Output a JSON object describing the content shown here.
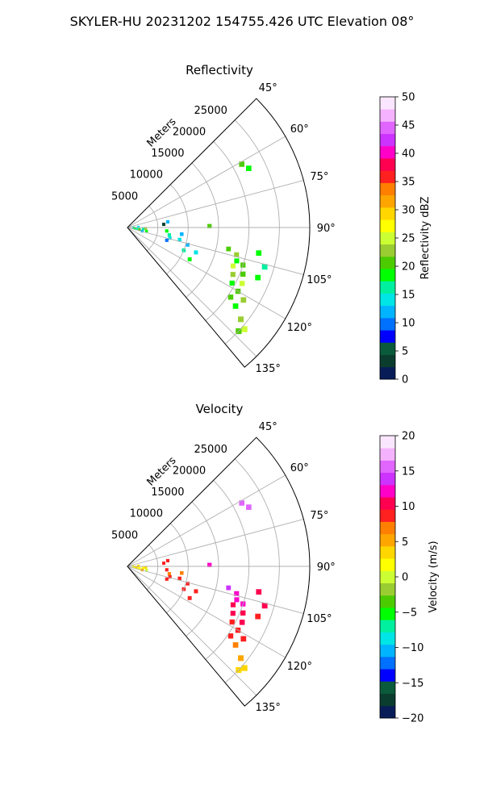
{
  "figure": {
    "suptitle": "SKYLER-HU  20231202  154755.426 UTC Elevation 08°",
    "range_unit_label": "Meters"
  },
  "chart_data": [
    {
      "type": "polar-ppi",
      "title": "Reflectivity",
      "colorbar_label": "Reflectivity dBZ",
      "colorbar_range": [
        0,
        50
      ],
      "colorbar_ticks": [
        "0",
        "5",
        "10",
        "15",
        "20",
        "25",
        "30",
        "35",
        "40",
        "45",
        "50"
      ],
      "colormap": [
        "#081d58",
        "#0b3d2e",
        "#0a5a3c",
        "#0000ff",
        "#0070ff",
        "#00b4ff",
        "#00e5e5",
        "#00f0a0",
        "#00ff00",
        "#4ccc00",
        "#9acd32",
        "#ccff33",
        "#ffff00",
        "#ffd700",
        "#ffa500",
        "#ff7f00",
        "#ff2020",
        "#ff0050",
        "#ff00c8",
        "#cc33ff",
        "#e066ff",
        "#f5b3ff",
        "#fbe6ff"
      ],
      "angular_ticks": [
        "45°",
        "60°",
        "75°",
        "90°",
        "105°",
        "120°",
        "135°"
      ],
      "radial_ticks": [
        "5000",
        "10000",
        "15000",
        "20000",
        "25000"
      ],
      "range_max_m": 30000,
      "azimuth_range_deg": [
        45,
        140
      ],
      "echo_cells": [
        {
          "az": 92,
          "r": 1000,
          "v": 14
        },
        {
          "az": 95,
          "r": 1200,
          "v": 18
        },
        {
          "az": 98,
          "r": 1500,
          "v": 16
        },
        {
          "az": 100,
          "r": 2000,
          "v": 20
        },
        {
          "az": 88,
          "r": 1800,
          "v": 15
        },
        {
          "az": 96,
          "r": 2600,
          "v": 17
        },
        {
          "az": 101,
          "r": 3200,
          "v": 19
        },
        {
          "az": 93,
          "r": 3000,
          "v": 22
        },
        {
          "az": 104,
          "r": 2500,
          "v": 13
        },
        {
          "az": 85,
          "r": 6000,
          "v": 3
        },
        {
          "az": 82,
          "r": 6700,
          "v": 12
        },
        {
          "az": 95,
          "r": 6500,
          "v": 18
        },
        {
          "az": 100,
          "r": 7000,
          "v": 16
        },
        {
          "az": 104,
          "r": 7200,
          "v": 14
        },
        {
          "az": 108,
          "r": 6800,
          "v": 10
        },
        {
          "az": 97,
          "r": 9000,
          "v": 12
        },
        {
          "az": 103,
          "r": 8800,
          "v": 15
        },
        {
          "az": 106,
          "r": 10300,
          "v": 13
        },
        {
          "az": 112,
          "r": 10000,
          "v": 17
        },
        {
          "az": 110,
          "r": 12000,
          "v": 15
        },
        {
          "az": 117,
          "r": 11500,
          "v": 18
        },
        {
          "az": 89,
          "r": 13500,
          "v": 20
        },
        {
          "az": 102,
          "r": 17000,
          "v": 20
        },
        {
          "az": 104,
          "r": 18500,
          "v": 22
        },
        {
          "az": 107,
          "r": 18800,
          "v": 19
        },
        {
          "az": 108,
          "r": 20000,
          "v": 21
        },
        {
          "az": 110,
          "r": 18500,
          "v": 24
        },
        {
          "az": 112,
          "r": 20500,
          "v": 20
        },
        {
          "az": 114,
          "r": 19000,
          "v": 22
        },
        {
          "az": 116,
          "r": 21000,
          "v": 25
        },
        {
          "az": 118,
          "r": 19500,
          "v": 18
        },
        {
          "az": 120,
          "r": 21000,
          "v": 21
        },
        {
          "az": 122,
          "r": 22500,
          "v": 23
        },
        {
          "az": 124,
          "r": 20500,
          "v": 20
        },
        {
          "az": 126,
          "r": 22000,
          "v": 19
        },
        {
          "az": 129,
          "r": 24000,
          "v": 22
        },
        {
          "az": 131,
          "r": 25500,
          "v": 24
        },
        {
          "az": 133,
          "r": 25000,
          "v": 21
        },
        {
          "az": 101,
          "r": 22000,
          "v": 18
        },
        {
          "az": 106,
          "r": 23500,
          "v": 16
        },
        {
          "az": 111,
          "r": 23000,
          "v": 19
        },
        {
          "az": 61,
          "r": 21500,
          "v": 20
        },
        {
          "az": 64,
          "r": 22200,
          "v": 18
        }
      ]
    },
    {
      "type": "polar-ppi",
      "title": "Velocity",
      "colorbar_label": "Velocity (m/s)",
      "colorbar_range": [
        -20,
        20
      ],
      "colorbar_ticks": [
        "−20",
        "−15",
        "−10",
        "−5",
        "0",
        "5",
        "10",
        "15",
        "20"
      ],
      "colormap": [
        "#081d58",
        "#0b3d2e",
        "#0a5a3c",
        "#0000ff",
        "#0070ff",
        "#00b4ff",
        "#00e5e5",
        "#00f0a0",
        "#00ff00",
        "#4ccc00",
        "#9acd32",
        "#ccff33",
        "#ffff00",
        "#ffd700",
        "#ffa500",
        "#ff7f00",
        "#ff2020",
        "#ff0050",
        "#ff00c8",
        "#cc33ff",
        "#e066ff",
        "#f5b3ff",
        "#fbe6ff"
      ],
      "angular_ticks": [
        "45°",
        "60°",
        "75°",
        "90°",
        "105°",
        "120°",
        "135°"
      ],
      "radial_ticks": [
        "5000",
        "10000",
        "15000",
        "20000",
        "25000"
      ],
      "range_max_m": 30000,
      "azimuth_range_deg": [
        45,
        140
      ],
      "echo_cells": [
        {
          "az": 92,
          "r": 1000,
          "v": 2
        },
        {
          "az": 95,
          "r": 1200,
          "v": 1
        },
        {
          "az": 98,
          "r": 1500,
          "v": 3
        },
        {
          "az": 100,
          "r": 2000,
          "v": 1
        },
        {
          "az": 88,
          "r": 1800,
          "v": 4
        },
        {
          "az": 96,
          "r": 2600,
          "v": 2
        },
        {
          "az": 101,
          "r": 3200,
          "v": 0
        },
        {
          "az": 93,
          "r": 3000,
          "v": 3
        },
        {
          "az": 104,
          "r": 2500,
          "v": 5
        },
        {
          "az": 85,
          "r": 6000,
          "v": 9
        },
        {
          "az": 82,
          "r": 6700,
          "v": 8
        },
        {
          "az": 95,
          "r": 6500,
          "v": 8
        },
        {
          "az": 100,
          "r": 7000,
          "v": 7
        },
        {
          "az": 104,
          "r": 7200,
          "v": 8
        },
        {
          "az": 108,
          "r": 6800,
          "v": 9
        },
        {
          "az": 97,
          "r": 9000,
          "v": 7
        },
        {
          "az": 103,
          "r": 8800,
          "v": 8
        },
        {
          "az": 106,
          "r": 10300,
          "v": 9
        },
        {
          "az": 112,
          "r": 10000,
          "v": 8
        },
        {
          "az": 110,
          "r": 12000,
          "v": 9
        },
        {
          "az": 117,
          "r": 11500,
          "v": 8
        },
        {
          "az": 89,
          "r": 13500,
          "v": 13
        },
        {
          "az": 102,
          "r": 17000,
          "v": 14
        },
        {
          "az": 104,
          "r": 18500,
          "v": 13
        },
        {
          "az": 107,
          "r": 18800,
          "v": 12
        },
        {
          "az": 108,
          "r": 20000,
          "v": 12
        },
        {
          "az": 110,
          "r": 18500,
          "v": 11
        },
        {
          "az": 112,
          "r": 20500,
          "v": 11
        },
        {
          "az": 114,
          "r": 19000,
          "v": 10
        },
        {
          "az": 116,
          "r": 21000,
          "v": 10
        },
        {
          "az": 118,
          "r": 19500,
          "v": 9
        },
        {
          "az": 120,
          "r": 21000,
          "v": 9
        },
        {
          "az": 122,
          "r": 22500,
          "v": 8
        },
        {
          "az": 124,
          "r": 20500,
          "v": 8
        },
        {
          "az": 126,
          "r": 22000,
          "v": 7
        },
        {
          "az": 129,
          "r": 24000,
          "v": 5
        },
        {
          "az": 131,
          "r": 25500,
          "v": 4
        },
        {
          "az": 133,
          "r": 25000,
          "v": 4
        },
        {
          "az": 101,
          "r": 22000,
          "v": 10
        },
        {
          "az": 106,
          "r": 23500,
          "v": 11
        },
        {
          "az": 111,
          "r": 23000,
          "v": 9
        },
        {
          "az": 61,
          "r": 21500,
          "v": 16
        },
        {
          "az": 64,
          "r": 22200,
          "v": 15
        }
      ]
    }
  ]
}
